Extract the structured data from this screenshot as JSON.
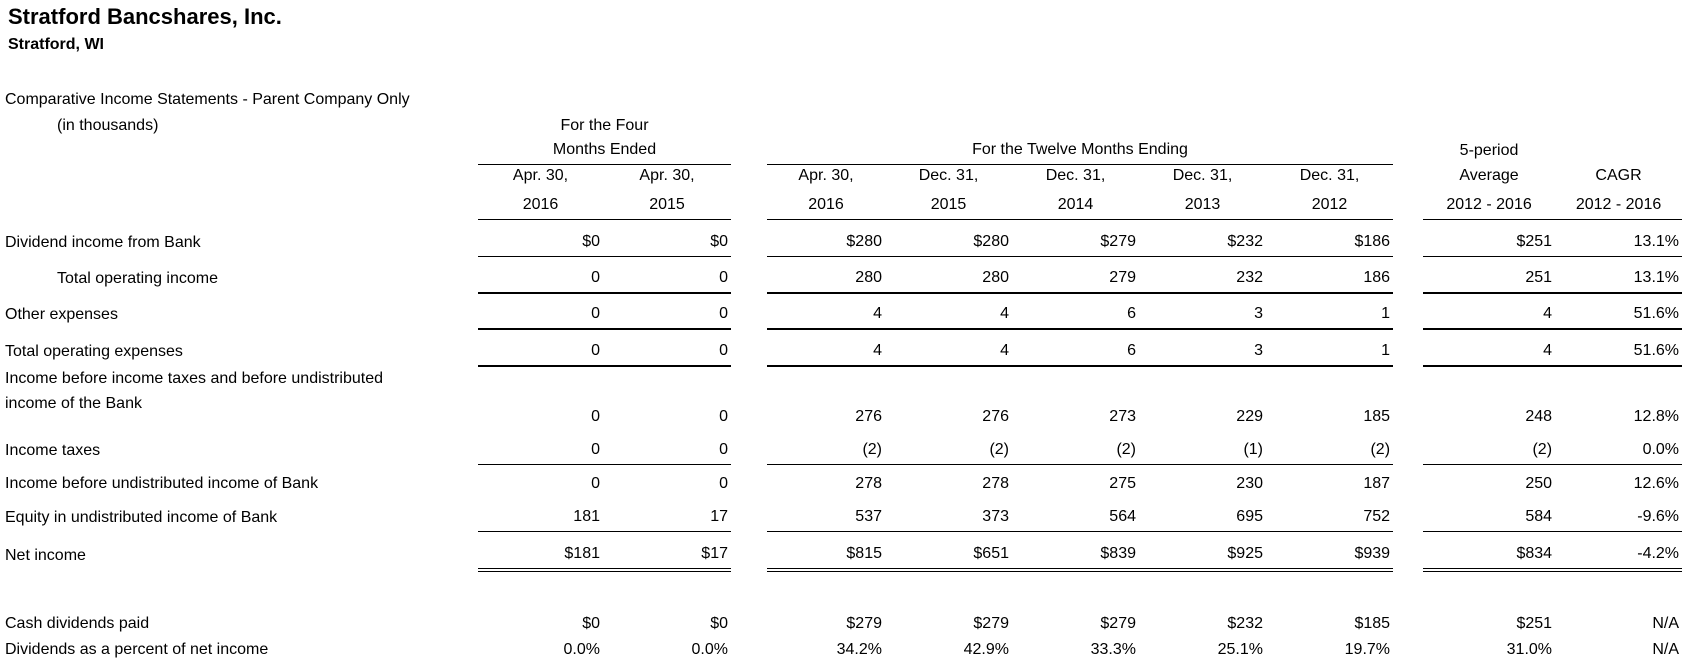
{
  "header": {
    "company": "Stratford Bancshares, Inc.",
    "location": "Stratford, WI",
    "title": "Comparative Income Statements - Parent Company Only",
    "units": "(in thousands)"
  },
  "table": {
    "groups": {
      "four_months": {
        "line1": "For the Four",
        "line2": "Months Ended"
      },
      "twelve_months": {
        "label": "For the Twelve Months Ending"
      },
      "summary": {
        "label": "5-period"
      }
    },
    "columns": [
      {
        "date": "Apr. 30,",
        "year": "2016"
      },
      {
        "date": "Apr. 30,",
        "year": "2015"
      },
      {
        "date": "Apr. 30,",
        "year": "2016"
      },
      {
        "date": "Dec. 31,",
        "year": "2015"
      },
      {
        "date": "Dec. 31,",
        "year": "2014"
      },
      {
        "date": "Dec. 31,",
        "year": "2013"
      },
      {
        "date": "Dec. 31,",
        "year": "2012"
      },
      {
        "date": "Average",
        "year": "2012 - 2016"
      },
      {
        "date": "CAGR",
        "year": "2012 - 2016"
      }
    ],
    "rows": [
      {
        "label": "Dividend income from Bank",
        "values": [
          "$0",
          "$0",
          "$280",
          "$280",
          "$279",
          "$232",
          "$186",
          "$251",
          "13.1%"
        ],
        "underline": "thin"
      },
      {
        "label": "Total operating income",
        "indent": true,
        "values": [
          "0",
          "0",
          "280",
          "280",
          "279",
          "232",
          "186",
          "251",
          "13.1%"
        ],
        "underline": "thick"
      },
      {
        "label": "Other expenses",
        "values": [
          "0",
          "0",
          "4",
          "4",
          "6",
          "3",
          "1",
          "4",
          "51.6%"
        ],
        "underline": "thick"
      },
      {
        "label": "Total operating expenses",
        "values": [
          "0",
          "0",
          "4",
          "4",
          "6",
          "3",
          "1",
          "4",
          "51.6%"
        ],
        "underline": "thick"
      },
      {
        "label": "Income before income taxes and before undistributed",
        "label2": "income of the Bank",
        "values": [
          "0",
          "0",
          "276",
          "276",
          "273",
          "229",
          "185",
          "248",
          "12.8%"
        ],
        "underline": "none"
      },
      {
        "label": "Income taxes",
        "values": [
          "0",
          "0",
          "(2)",
          "(2)",
          "(2)",
          "(1)",
          "(2)",
          "(2)",
          "0.0%"
        ],
        "underline": "thin"
      },
      {
        "label": "Income before undistributed income of Bank",
        "values": [
          "0",
          "0",
          "278",
          "278",
          "275",
          "230",
          "187",
          "250",
          "12.6%"
        ],
        "underline": "none"
      },
      {
        "label": "Equity in undistributed income of Bank",
        "values": [
          "181",
          "17",
          "537",
          "373",
          "564",
          "695",
          "752",
          "584",
          "-9.6%"
        ],
        "underline": "thin"
      },
      {
        "label": "Net income",
        "values": [
          "$181",
          "$17",
          "$815",
          "$651",
          "$839",
          "$925",
          "$939",
          "$834",
          "-4.2%"
        ],
        "underline": "double"
      },
      {
        "spacer": true
      },
      {
        "label": "Cash dividends paid",
        "values": [
          "$0",
          "$0",
          "$279",
          "$279",
          "$279",
          "$232",
          "$185",
          "$251",
          "N/A"
        ],
        "underline": "none"
      },
      {
        "label": "Dividends as a percent of net income",
        "values": [
          "0.0%",
          "0.0%",
          "34.2%",
          "42.9%",
          "33.3%",
          "25.1%",
          "19.7%",
          "31.0%",
          "N/A"
        ],
        "underline": "none"
      }
    ]
  }
}
